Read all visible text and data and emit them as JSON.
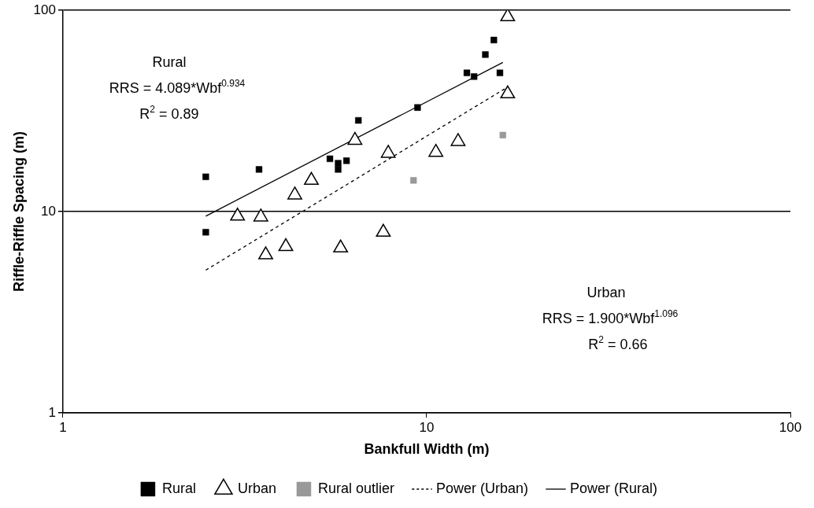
{
  "chart_data": {
    "type": "scatter",
    "xlabel": "Bankfull Width (m)",
    "ylabel": "Riffle-Riffle Spacing (m)",
    "log": "xy",
    "grid": "y",
    "legend": "bottom",
    "xlim": [
      1,
      100
    ],
    "xticks": [
      1,
      10,
      100
    ],
    "ylim": [
      1,
      100
    ],
    "yticks": [
      1,
      10,
      100
    ],
    "series": [
      {
        "name": "Rural",
        "type": "scatter",
        "marker": "square",
        "color": "#000000",
        "x": [
          2.47,
          2.47,
          3.46,
          5.42,
          5.71,
          6.02,
          5.71,
          6.49,
          9.44,
          12.9,
          13.5,
          14.5,
          15.3,
          15.9
        ],
        "values": [
          14.9,
          7.9,
          16.2,
          18.3,
          17.4,
          17.9,
          16.2,
          28.4,
          32.9,
          48.9,
          46.9,
          60.3,
          71.2,
          48.9
        ]
      },
      {
        "name": "Urban",
        "type": "scatter",
        "marker": "triangle",
        "color": "#000000",
        "x": [
          3.02,
          3.5,
          3.61,
          4.1,
          4.34,
          4.82,
          5.8,
          6.35,
          7.84,
          7.6,
          10.6,
          12.2,
          16.7,
          16.7
        ],
        "values": [
          9.5,
          9.4,
          6.1,
          6.7,
          12.1,
          14.3,
          6.6,
          22.6,
          19.5,
          7.9,
          19.7,
          22.3,
          93,
          38.5
        ]
      },
      {
        "name": "Rural outlier",
        "type": "scatter",
        "marker": "square",
        "color": "#999999",
        "x": [
          9.2,
          16.2
        ],
        "values": [
          14.3,
          24.0
        ]
      },
      {
        "name": "Power (Urban)",
        "type": "line",
        "marker": "none",
        "line_style": "dashed",
        "color": "#000000",
        "x": [
          2.47,
          16.7
        ],
        "values": [
          5.12,
          41.6
        ]
      },
      {
        "name": "Power (Rural)",
        "type": "line",
        "marker": "none",
        "line_style": "solid",
        "color": "#000000",
        "x": [
          2.47,
          16.2
        ],
        "values": [
          9.5,
          55.1
        ]
      }
    ],
    "annotations": [
      "Rural",
      "RRS = 4.089*Wbf$^{0.934}$",
      "R$^{2}$ = 0.89",
      "Urban",
      "RRS = 1.900*Wbf$^{1.096}$",
      "R$^{2}$ = 0.66"
    ]
  }
}
